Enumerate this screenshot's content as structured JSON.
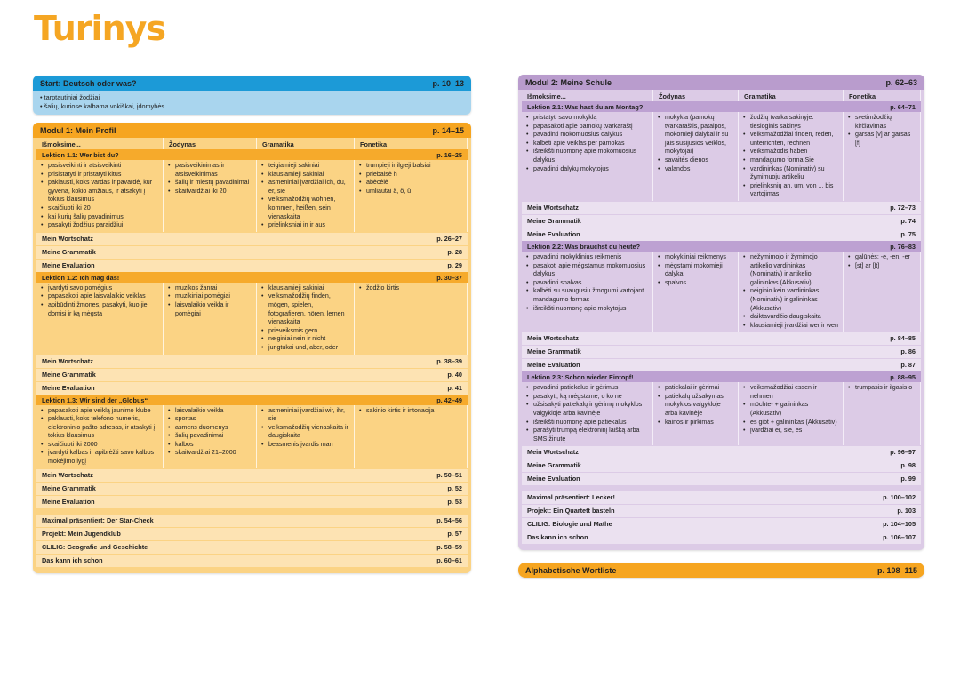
{
  "title": "Turinys",
  "colors": {
    "blue": "#1c9ad7",
    "orange": "#f6a520",
    "purple": "#b99ccd"
  },
  "start": {
    "title": "Start: Deutsch oder was?",
    "pages": "p. 10–13",
    "items": [
      "tarptautiniai žodžiai",
      "šalių, kuriose kalbama vokiškai, įdomybės"
    ]
  },
  "modules": [
    {
      "title": "Modul 1: Mein Profil",
      "pages": "p. 14–15",
      "columns": [
        "Išmoksime...",
        "Žodynas",
        "Gramatika",
        "Fonetika"
      ],
      "lessons": [
        {
          "title": "Lektion 1.1: Wer bist du?",
          "pages": "p. 16–25",
          "cols": [
            [
              "pasisveikinti ir atsisveikinti",
              "prisistatyti ir pristatyti kitus",
              "paklausti, koks vardas ir pavardė, kur gyvena, kokio amžiaus, ir atsakyti į tokius klausimus",
              "skaičiuoti iki 20",
              "kai kurių šalių pavadinimus",
              "pasakyti žodžius paraidžiui"
            ],
            [
              "pasisveikinimas ir atsisveikinimas",
              "šalių ir miestų pavadinimai",
              "skaitvardžiai iki 20"
            ],
            [
              "teigiamieji sakiniai",
              "klausiamieji sakiniai",
              "asmeniniai įvardžiai ich, du, er, sie",
              "veiksmažodžių wohnen, kommen, heißen, sein vienaskaita",
              "prielinksniai in ir aus"
            ],
            [
              "trumpieji ir ilgieji balsiai",
              "priebalsė h",
              "abėcėlė",
              "umliautai ä, ö, ü"
            ]
          ],
          "rows": [
            {
              "label": "Mein Wortschatz",
              "pages": "p. 26–27"
            },
            {
              "label": "Meine Grammatik",
              "pages": "p. 28"
            },
            {
              "label": "Meine Evaluation",
              "pages": "p. 29"
            }
          ]
        },
        {
          "title": "Lektion 1.2: Ich mag das!",
          "pages": "p. 30–37",
          "cols": [
            [
              "įvardyti savo pomėgius",
              "papasakoti apie laisvalaikio veiklas",
              "apibūdinti žmones, pasakyti, kuo jie domisi ir ką mėgsta"
            ],
            [
              "muzikos žanrai",
              "muzikiniai pomėgiai",
              "laisvalaikio veikla ir pomėgiai"
            ],
            [
              "klausiamieji sakiniai",
              "veiksmažodžių finden, mögen, spielen, fotografieren, hören, lernen vienaskaita",
              "prieveiksmis gern",
              "neiginiai nein ir nicht",
              "jungtukai und, aber, oder"
            ],
            [
              "žodžio kirtis"
            ]
          ],
          "rows": [
            {
              "label": "Mein Wortschatz",
              "pages": "p. 38–39"
            },
            {
              "label": "Meine Grammatik",
              "pages": "p. 40"
            },
            {
              "label": "Meine Evaluation",
              "pages": "p. 41"
            }
          ]
        },
        {
          "title": "Lektion 1.3: Wir sind der „Globus“",
          "pages": "p. 42–49",
          "cols": [
            [
              "papasakoti apie veiklą jaunimo klube",
              "paklausti, koks telefono numeris, elektroninio pašto adresas, ir atsakyti į tokius klausimus",
              "skaičiuoti iki 2000",
              "įvardyti kalbas ir apibrėžti savo kalbos mokėjimo lygį"
            ],
            [
              "laisvalaikio veikla",
              "sportas",
              "asmens duomenys",
              "šalių pavadinimai",
              "kalbos",
              "skaitvardžiai 21–2000"
            ],
            [
              "asmeniniai įvardžiai wir, ihr, sie",
              "veiksmažodžių vienaskaita ir daugiskaita",
              "beasmenis įvardis man"
            ],
            [
              "sakinio kirtis ir intonacija"
            ]
          ],
          "rows": [
            {
              "label": "Mein Wortschatz",
              "pages": "p. 50–51"
            },
            {
              "label": "Meine Grammatik",
              "pages": "p. 52"
            },
            {
              "label": "Meine Evaluation",
              "pages": "p. 53"
            }
          ]
        }
      ],
      "extras": [
        {
          "label": "Maximal präsentiert: Der Star-Check",
          "pages": "p. 54–56"
        },
        {
          "label": "Projekt: Mein Jugendklub",
          "pages": "p. 57"
        },
        {
          "label": "CLILIG: Geografie und Geschichte",
          "pages": "p. 58–59"
        },
        {
          "label": "Das kann ich schon",
          "pages": "p. 60–61"
        }
      ]
    },
    {
      "title": "Modul 2: Meine Schule",
      "pages": "p. 62–63",
      "columns": [
        "Išmoksime...",
        "Žodynas",
        "Gramatika",
        "Fonetika"
      ],
      "lessons": [
        {
          "title": "Lektion 2.1: Was hast du am Montag?",
          "pages": "p. 64–71",
          "cols": [
            [
              "pristatyti savo mokyklą",
              "papasakoti apie pamokų tvarkaraštį",
              "pavadinti mokomuosius dalykus",
              "kalbėti apie veiklas per pamokas",
              "išreikšti nuomonę apie mokomuosius dalykus",
              "pavadinti dalykų mokytojus"
            ],
            [
              "mokykla (pamokų tvarkaraštis, patalpos, mokomieji dalykai ir su jais susijusios veiklos, mokytojai)",
              "savaitės dienos",
              "valandos"
            ],
            [
              "žodžių tvarka sakinyje: tiesioginis sakinys",
              "veiksmažodžiai finden, reden, unterrichten, rechnen",
              "veiksmažodis haben",
              "mandagumo forma Sie",
              "vardininkas (Nominativ) su žymimuoju artikeliu",
              "prielinksnių an, um, von ... bis vartojimas"
            ],
            [
              "svetimžodžių kirčiavimas",
              "garsas [v] ar garsas [f]"
            ]
          ],
          "rows": [
            {
              "label": "Mein Wortschatz",
              "pages": "p. 72–73"
            },
            {
              "label": "Meine Grammatik",
              "pages": "p. 74"
            },
            {
              "label": "Meine Evaluation",
              "pages": "p. 75"
            }
          ]
        },
        {
          "title": "Lektion 2.2: Was brauchst du heute?",
          "pages": "p. 76–83",
          "cols": [
            [
              "pavadinti mokyklinius reikmenis",
              "pasakoti apie mėgstamus mokomuosius dalykus",
              "pavadinti spalvas",
              "kalbėti su suaugusiu žmogumi vartojant mandagumo formas",
              "išreikšti nuomonę apie mokytojus"
            ],
            [
              "mokykliniai reikmenys",
              "mėgstami mokomieji dalykai",
              "spalvos"
            ],
            [
              "nežymimojo ir žymimojo artikelio vardininkas (Nominativ) ir artikelio galininkas (Akkusativ)",
              "neiginio kein vardininkas (Nominativ) ir galininkas (Akkusativ)",
              "daiktavardžio daugiskaita",
              "klausiamieji įvardžiai wer ir wen"
            ],
            [
              "galūnės: -e, -en, -er",
              "[st] ar [ʃt]"
            ]
          ],
          "rows": [
            {
              "label": "Mein Wortschatz",
              "pages": "p. 84–85"
            },
            {
              "label": "Meine Grammatik",
              "pages": "p. 86"
            },
            {
              "label": "Meine Evaluation",
              "pages": "p. 87"
            }
          ]
        },
        {
          "title": "Lektion 2.3: Schon wieder Eintopf!",
          "pages": "p. 88–95",
          "cols": [
            [
              "pavadinti patiekalus ir gėrimus",
              "pasakyti, ką mėgstame, o ko ne",
              "užsisakyti patiekalų ir gėrimų mokyklos valgykloje arba kavinėje",
              "išreikšti nuomonę apie patiekalus",
              "parašyti trumpą elektroninį laišką arba SMS žinutę"
            ],
            [
              "patiekalai ir gėrimai",
              "patiekalų užsakymas mokyklos valgykloje arba kavinėje",
              "kainos ir pirkimas"
            ],
            [
              "veiksmažodžiai essen ir nehmen",
              "möchte- + galininkas (Akkusativ)",
              "es gibt + galininkas (Akkusativ)",
              "įvardžiai er, sie, es"
            ],
            [
              "trumpasis ir ilgasis o"
            ]
          ],
          "rows": [
            {
              "label": "Mein Wortschatz",
              "pages": "p. 96–97"
            },
            {
              "label": "Meine Grammatik",
              "pages": "p. 98"
            },
            {
              "label": "Meine Evaluation",
              "pages": "p. 99"
            }
          ]
        }
      ],
      "extras": [
        {
          "label": "Maximal präsentiert: Lecker!",
          "pages": "p. 100–102"
        },
        {
          "label": "Projekt: Ein Quartett basteln",
          "pages": "p. 103"
        },
        {
          "label": "CLILIG: Biologie und Mathe",
          "pages": "p. 104–105"
        },
        {
          "label": "Das kann ich schon",
          "pages": "p. 106–107"
        }
      ]
    }
  ],
  "wordlist": {
    "title": "Alphabetische Wortliste",
    "pages": "p. 108–115"
  }
}
